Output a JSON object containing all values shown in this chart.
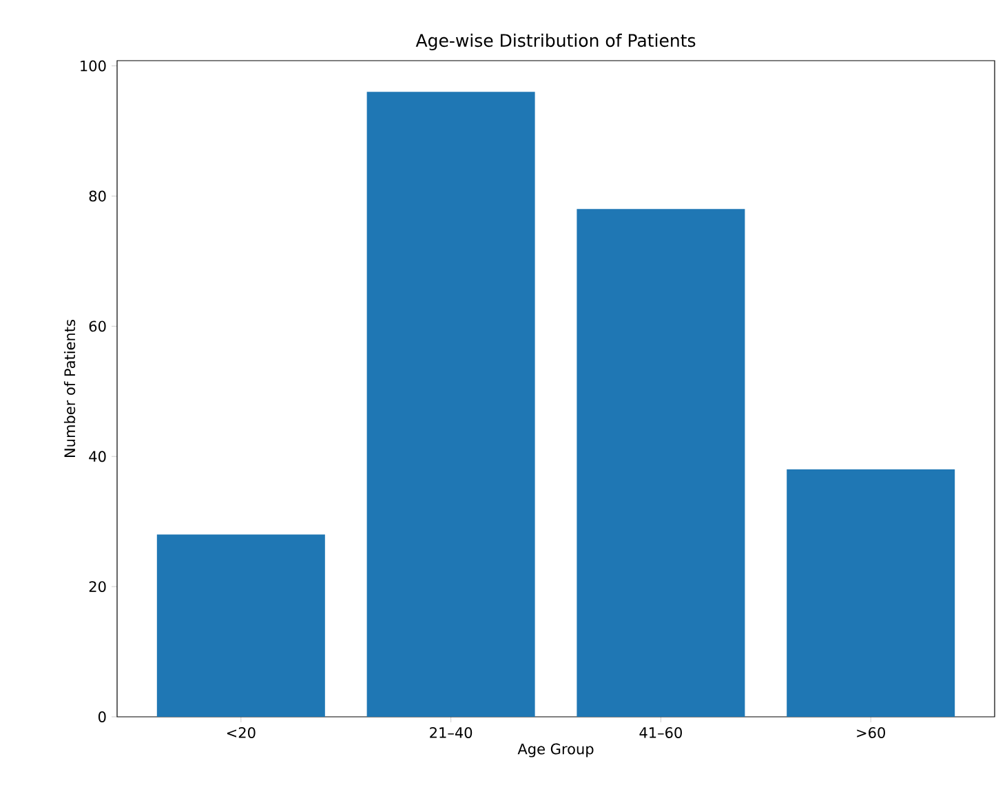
{
  "chart_data": {
    "type": "bar",
    "title": "Age-wise Distribution of Patients",
    "xlabel": "Age Group",
    "ylabel": "Number of Patients",
    "categories": [
      "<20",
      "21–40",
      "41–60",
      ">60"
    ],
    "values": [
      28,
      96,
      78,
      38
    ],
    "color": "#1f77b4",
    "ylim": [
      0,
      100.8
    ],
    "yticks": [
      0,
      20,
      40,
      60,
      80,
      100
    ]
  }
}
